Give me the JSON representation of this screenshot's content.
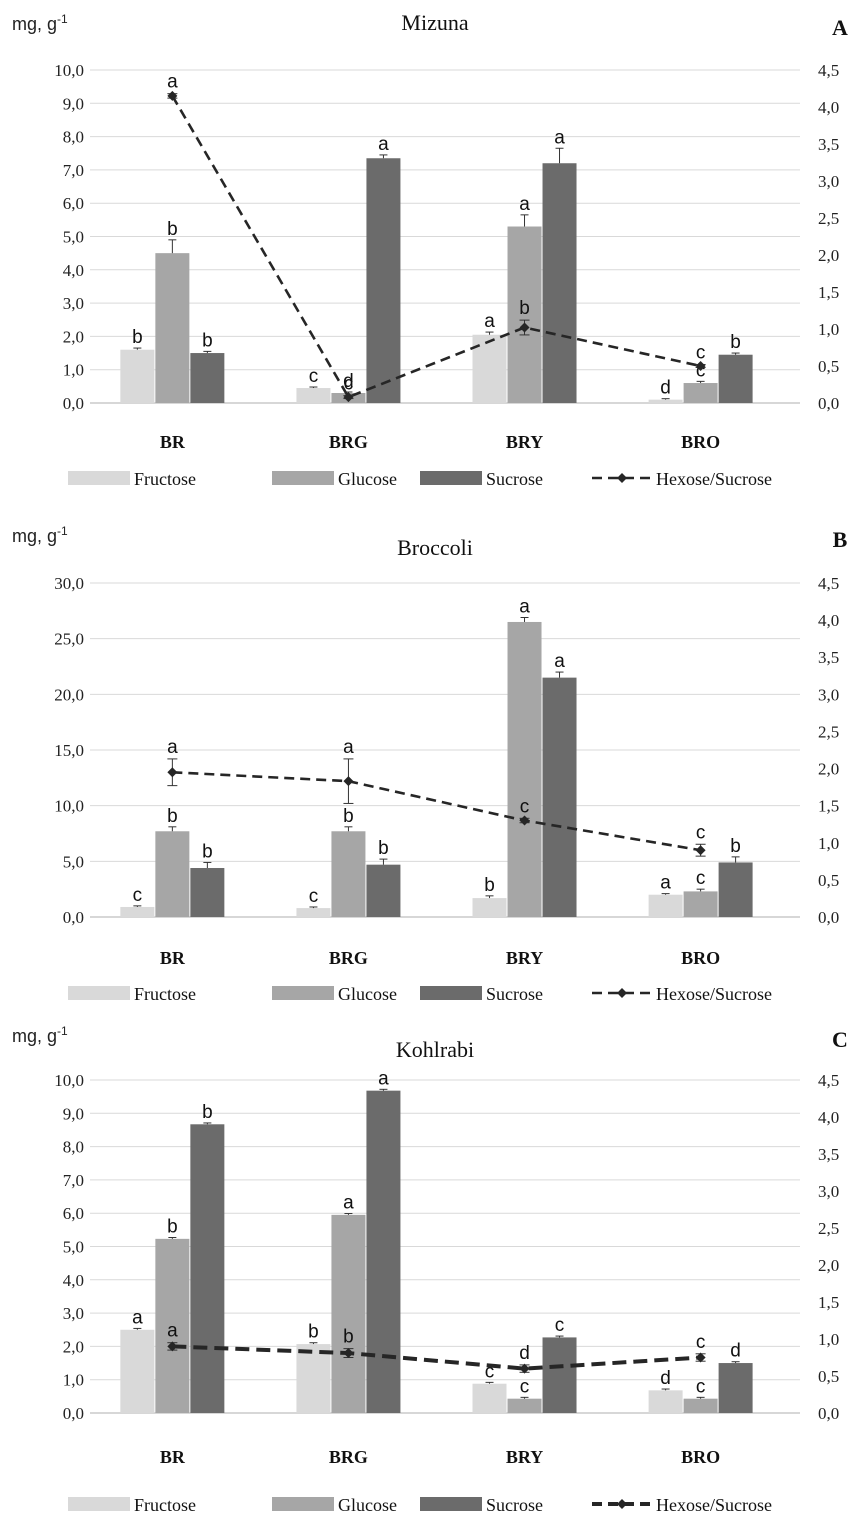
{
  "colors": {
    "fructose": "#d9d9d9",
    "glucose": "#a6a6a6",
    "sucrose": "#6b6b6b",
    "line": "#262626",
    "grid": "#d9d9d9"
  },
  "legend": {
    "fructose": "Fructose",
    "glucose": "Glucose",
    "sucrose": "Sucrose",
    "ratio": "Hexose/Sucrose"
  },
  "chart_data": [
    {
      "type": "bar",
      "panel": "A",
      "title": "Mizuna",
      "ylabel_prefix": "mg, g",
      "ylabel_sup": "-1",
      "categories": [
        "BR",
        "BRG",
        "BRY",
        "BRO"
      ],
      "ylim": [
        0,
        10
      ],
      "yticks": [
        0,
        1,
        2,
        3,
        4,
        5,
        6,
        7,
        8,
        9,
        10
      ],
      "ytick_labels": [
        "0,0",
        "1,0",
        "2,0",
        "3,0",
        "4,0",
        "5,0",
        "6,0",
        "7,0",
        "8,0",
        "9,0",
        "10,0"
      ],
      "y2lim": [
        0,
        4.5
      ],
      "y2ticks": [
        0,
        0.5,
        1,
        1.5,
        2,
        2.5,
        3,
        3.5,
        4,
        4.5
      ],
      "y2tick_labels": [
        "0,0",
        "0,5",
        "1,0",
        "1,5",
        "2,0",
        "2,5",
        "3,0",
        "3,5",
        "4,0",
        "4,5"
      ],
      "grid": true,
      "series": [
        {
          "name": "Fructose",
          "values": [
            1.6,
            0.45,
            2.05,
            0.1
          ],
          "errors": [
            0.05,
            0.03,
            0.08,
            0.03
          ],
          "letters": [
            "b",
            "c",
            "a",
            "d"
          ]
        },
        {
          "name": "Glucose",
          "values": [
            4.5,
            0.3,
            5.3,
            0.6
          ],
          "errors": [
            0.4,
            0.03,
            0.35,
            0.05
          ],
          "letters": [
            "b",
            "d",
            "a",
            "c"
          ]
        },
        {
          "name": "Sucrose",
          "values": [
            1.5,
            7.35,
            7.2,
            1.45
          ],
          "errors": [
            0.05,
            0.1,
            0.45,
            0.05
          ],
          "letters": [
            "b",
            "a",
            "a",
            "b"
          ]
        }
      ],
      "line_series": {
        "name": "Hexose/Sucrose",
        "axis": "right",
        "values": [
          4.15,
          0.08,
          1.02,
          0.5
        ],
        "errors": [
          0.03,
          0.02,
          0.1,
          0.02
        ],
        "letters": [
          "a",
          "c",
          "b",
          "c"
        ]
      }
    },
    {
      "type": "bar",
      "panel": "B",
      "title": "Broccoli",
      "ylabel_prefix": "mg, g",
      "ylabel_sup": "-1",
      "categories": [
        "BR",
        "BRG",
        "BRY",
        "BRO"
      ],
      "ylim": [
        0,
        30
      ],
      "yticks": [
        0,
        5,
        10,
        15,
        20,
        25,
        30
      ],
      "ytick_labels": [
        "0,0",
        "5,0",
        "10,0",
        "15,0",
        "20,0",
        "25,0",
        "30,0"
      ],
      "y2lim": [
        0,
        4.5
      ],
      "y2ticks": [
        0,
        0.5,
        1,
        1.5,
        2,
        2.5,
        3,
        3.5,
        4,
        4.5
      ],
      "y2tick_labels": [
        "0,0",
        "0,5",
        "1,0",
        "1,5",
        "2,0",
        "2,5",
        "3,0",
        "3,5",
        "4,0",
        "4,5"
      ],
      "grid": true,
      "series": [
        {
          "name": "Fructose",
          "values": [
            0.9,
            0.8,
            1.7,
            2.0
          ],
          "errors": [
            0.1,
            0.1,
            0.2,
            0.1
          ],
          "letters": [
            "c",
            "c",
            "b",
            "a"
          ]
        },
        {
          "name": "Glucose",
          "values": [
            7.7,
            7.7,
            26.5,
            2.3
          ],
          "errors": [
            0.4,
            0.4,
            0.4,
            0.2
          ],
          "letters": [
            "b",
            "b",
            "a",
            "c"
          ]
        },
        {
          "name": "Sucrose",
          "values": [
            4.4,
            4.7,
            21.5,
            4.9
          ],
          "errors": [
            0.5,
            0.5,
            0.5,
            0.5
          ],
          "letters": [
            "b",
            "b",
            "a",
            "b"
          ]
        }
      ],
      "line_series": {
        "name": "Hexose/Sucrose",
        "axis": "right",
        "values": [
          1.95,
          1.83,
          1.3,
          0.9
        ],
        "errors": [
          0.18,
          0.3,
          0.03,
          0.08
        ],
        "letters": [
          "a",
          "a",
          "c",
          "c"
        ]
      }
    },
    {
      "type": "bar",
      "panel": "C",
      "title": "Kohlrabi",
      "ylabel_prefix": "mg, g",
      "ylabel_sup": "-1",
      "categories": [
        "BR",
        "BRG",
        "BRY",
        "BRO"
      ],
      "ylim": [
        0,
        10
      ],
      "yticks": [
        0,
        1,
        2,
        3,
        4,
        5,
        6,
        7,
        8,
        9,
        10
      ],
      "ytick_labels": [
        "0,0",
        "1,0",
        "2,0",
        "3,0",
        "4,0",
        "5,0",
        "6,0",
        "7,0",
        "8,0",
        "9,0",
        "10,0"
      ],
      "y2lim": [
        0,
        4.5
      ],
      "y2ticks": [
        0,
        0.5,
        1,
        1.5,
        2,
        2.5,
        3,
        3.5,
        4,
        4.5
      ],
      "y2tick_labels": [
        "0,0",
        "0,5",
        "1,0",
        "1,5",
        "2,0",
        "2,5",
        "3,0",
        "3,5",
        "4,0",
        "4,5"
      ],
      "grid": true,
      "series": [
        {
          "name": "Fructose",
          "values": [
            2.5,
            2.07,
            0.88,
            0.68
          ],
          "errors": [
            0.04,
            0.04,
            0.04,
            0.04
          ],
          "letters": [
            "a",
            "b",
            "c",
            "d"
          ]
        },
        {
          "name": "Glucose",
          "values": [
            5.23,
            5.95,
            0.43,
            0.43
          ],
          "errors": [
            0.04,
            0.04,
            0.04,
            0.04
          ],
          "letters": [
            "b",
            "a",
            "c",
            "c"
          ]
        },
        {
          "name": "Sucrose",
          "values": [
            8.67,
            9.68,
            2.27,
            1.5
          ],
          "errors": [
            0.04,
            0.04,
            0.04,
            0.04
          ],
          "letters": [
            "b",
            "a",
            "c",
            "d"
          ]
        }
      ],
      "line_series": {
        "name": "Hexose/Sucrose",
        "axis": "right",
        "values": [
          0.9,
          0.81,
          0.6,
          0.75
        ],
        "errors": [
          0.05,
          0.06,
          0.05,
          0.05
        ],
        "letters": [
          "a",
          "b",
          "d",
          "c"
        ]
      }
    }
  ]
}
